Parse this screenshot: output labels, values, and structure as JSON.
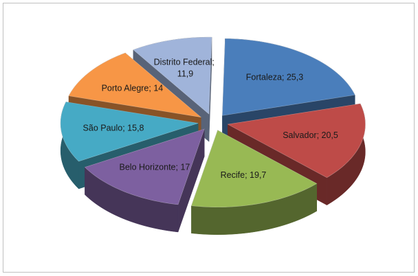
{
  "chart_data": {
    "type": "pie3d",
    "categories": [
      "Fortaleza",
      "Salvador",
      "Recife",
      "Belo Horizonte",
      "São Paulo",
      "Porto Alegre",
      "Distrito Federal"
    ],
    "values": [
      25.3,
      20.5,
      19.7,
      17,
      15.8,
      14,
      11.9
    ],
    "value_labels": [
      "25,3",
      "20,5",
      "19,7",
      "17",
      "15,8",
      "14",
      "11,9"
    ],
    "label_separator": "; ",
    "colors": [
      "#4a7ebb",
      "#be4b48",
      "#98b954",
      "#7d60a0",
      "#46aac5",
      "#f79646",
      "#a0b4da"
    ]
  }
}
